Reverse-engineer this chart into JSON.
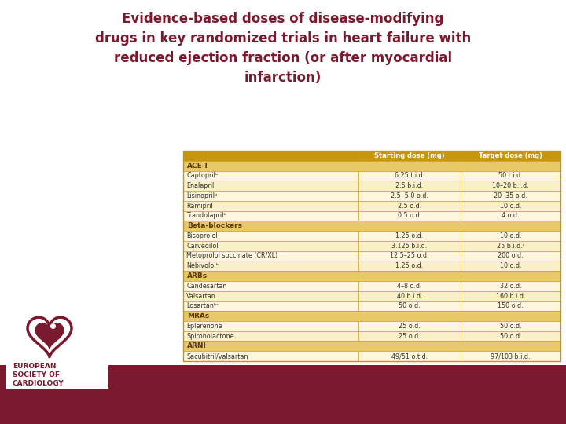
{
  "title": "Evidence-based doses of disease-modifying\ndrugs in key randomized trials in heart failure with\nreduced ejection fraction (or after myocardial\ninfarction)",
  "title_color": "#7B1A2E",
  "bg_color": "#FFFFFF",
  "footer_color": "#7B1A2E",
  "table": {
    "header": [
      "",
      "Starting dose (mg)",
      "Target dose (mg)"
    ],
    "header_bg": "#C8960C",
    "header_text_color": "#FFFFFF",
    "section_bg": "#E8C96A",
    "section_text_color": "#5C3A00",
    "row_bg_even": "#FDF5DC",
    "row_bg_odd": "#FAF0C8",
    "border_color": "#C8960C",
    "text_color": "#333333",
    "sections": [
      {
        "name": "ACE-I",
        "rows": [
          [
            "Captoprilᵇ",
            "6.25 t.i.d.",
            "50 t.i.d."
          ],
          [
            "Enalapril",
            "2.5 b.i.d.",
            "10–20 b.i.d."
          ],
          [
            "Lisinoprilᵇ",
            "2.5  5.0 o.d.",
            "20  35 o.d."
          ],
          [
            "Ramipril",
            "2.5 o.d.",
            "10 o.d."
          ],
          [
            "Trandolaprilᵇ",
            "0.5 o.d.",
            "4 o.d."
          ]
        ]
      },
      {
        "name": "Beta-blockers",
        "rows": [
          [
            "Bisoprolol",
            "1.25 o.d.",
            "10 o.d."
          ],
          [
            "Carvedilol",
            "3.125 b.i.d.",
            "25 b.i.d.ᶜ"
          ],
          [
            "Metoprolol succinate (CR/XL)",
            "12.5–25 o.d.",
            "200 o.d."
          ],
          [
            "Nebivololᵇ",
            "1.25 o.d.",
            "10 o.d."
          ]
        ]
      },
      {
        "name": "ARBs",
        "rows": [
          [
            "Candesartan",
            "4–8 o.d.",
            "32 o.d."
          ],
          [
            "Valsartan",
            "40 b.i.d.",
            "160 b.i.d."
          ],
          [
            "Losartanᵇᶜ",
            "50 o.d.",
            "150 o.d."
          ]
        ]
      },
      {
        "name": "MRAs",
        "rows": [
          [
            "Eplerenone",
            "25 o.d.",
            "50 o.d."
          ],
          [
            "Spironolactone",
            "25 o.d.",
            "50 o.d."
          ]
        ]
      },
      {
        "name": "ARNI",
        "rows": [
          [
            "Sacubitril/valsartan",
            "49/51 o.t.d.",
            "97/103 b.i.d."
          ]
        ]
      }
    ]
  }
}
